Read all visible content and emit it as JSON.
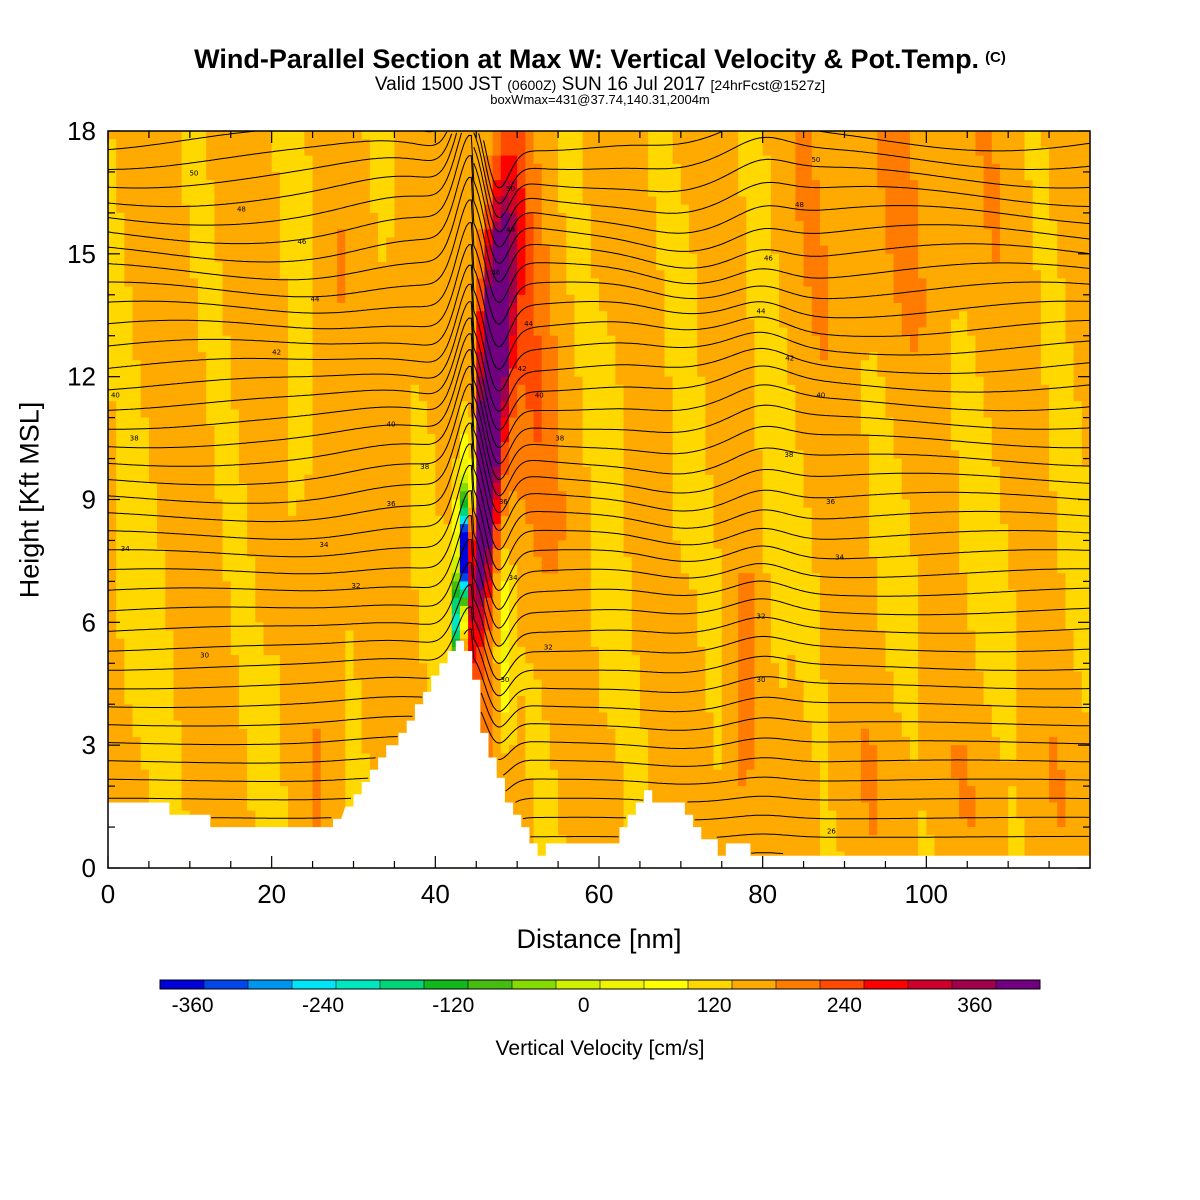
{
  "header": {
    "title": "Wind-Parallel Section at Max W: Vertical Velocity & Pot.Temp.",
    "title_unit": "(C)",
    "valid_main_a": "Valid 1500 JST",
    "valid_small_a": "(0600Z)",
    "valid_main_b": "SUN 16 Jul 2017",
    "valid_small_b": "[24hrFcst@1527z]",
    "box_line": "boxWmax=431@37.74,140.31,2004m"
  },
  "chart_data": {
    "type": "heatmap",
    "xlabel": "Distance [nm]",
    "ylabel": "Height [Kft MSL]",
    "xlim": [
      0,
      120
    ],
    "ylim": [
      0,
      18
    ],
    "x_ticks": [
      "0",
      "20",
      "40",
      "60",
      "80",
      "100"
    ],
    "x_tick_values": [
      0,
      20,
      40,
      60,
      80,
      100
    ],
    "y_ticks": [
      "0",
      "3",
      "6",
      "9",
      "12",
      "15",
      "18"
    ],
    "y_tick_values": [
      0,
      3,
      6,
      9,
      12,
      15,
      18
    ],
    "colorbar": {
      "label": "Vertical Velocity [cm/s]",
      "tick_labels": [
        "-360",
        "-240",
        "-120",
        "0",
        "120",
        "240",
        "360"
      ],
      "tick_values": [
        -360,
        -240,
        -120,
        0,
        120,
        240,
        360
      ],
      "range": [
        -390,
        420
      ],
      "interval": 30,
      "colors": [
        "#0000d8",
        "#0046e8",
        "#0096f0",
        "#00e6f8",
        "#00e8c0",
        "#00d678",
        "#12b81e",
        "#46bc10",
        "#86dc00",
        "#d0f200",
        "#f0f400",
        "#ffff00",
        "#ffd800",
        "#ffaa00",
        "#ff7c00",
        "#ff4a00",
        "#ff0000",
        "#d0002a",
        "#a0004c",
        "#700080"
      ]
    },
    "contour_label": "Potential Temperature (C), 2 C interval",
    "theta_labels": [
      {
        "text": "50",
        "x": 10.5,
        "y": 16.98
      },
      {
        "text": "48",
        "x": 16.3,
        "y": 16.1
      },
      {
        "text": "46",
        "x": 23.7,
        "y": 15.3
      },
      {
        "text": "44",
        "x": 25.3,
        "y": 13.9
      },
      {
        "text": "42",
        "x": 20.6,
        "y": 12.6
      },
      {
        "text": "40",
        "x": 0.9,
        "y": 11.55
      },
      {
        "text": "38",
        "x": 3.2,
        "y": 10.5
      },
      {
        "text": "34",
        "x": 2.1,
        "y": 7.8
      },
      {
        "text": "30",
        "x": 11.8,
        "y": 5.2
      },
      {
        "text": "40",
        "x": 34.6,
        "y": 10.85
      },
      {
        "text": "38",
        "x": 38.7,
        "y": 9.8
      },
      {
        "text": "36",
        "x": 34.6,
        "y": 8.9
      },
      {
        "text": "34",
        "x": 26.4,
        "y": 7.9
      },
      {
        "text": "32",
        "x": 30.3,
        "y": 6.9
      },
      {
        "text": "50",
        "x": 49.2,
        "y": 16.6
      },
      {
        "text": "48",
        "x": 49.2,
        "y": 15.6
      },
      {
        "text": "46",
        "x": 47.4,
        "y": 14.55
      },
      {
        "text": "44",
        "x": 51.4,
        "y": 13.3
      },
      {
        "text": "42",
        "x": 50.6,
        "y": 12.2
      },
      {
        "text": "40",
        "x": 52.7,
        "y": 11.55
      },
      {
        "text": "38",
        "x": 55.2,
        "y": 10.5
      },
      {
        "text": "36",
        "x": 48.3,
        "y": 8.95
      },
      {
        "text": "34",
        "x": 49.5,
        "y": 7.1
      },
      {
        "text": "32",
        "x": 53.8,
        "y": 5.4
      },
      {
        "text": "30",
        "x": 48.5,
        "y": 4.6
      },
      {
        "text": "50",
        "x": 86.5,
        "y": 17.3
      },
      {
        "text": "48",
        "x": 84.5,
        "y": 16.2
      },
      {
        "text": "46",
        "x": 80.7,
        "y": 14.9
      },
      {
        "text": "44",
        "x": 79.8,
        "y": 13.6
      },
      {
        "text": "42",
        "x": 83.3,
        "y": 12.45
      },
      {
        "text": "40",
        "x": 87.1,
        "y": 11.55
      },
      {
        "text": "38",
        "x": 83.2,
        "y": 10.1
      },
      {
        "text": "36",
        "x": 88.3,
        "y": 8.95
      },
      {
        "text": "34",
        "x": 89.4,
        "y": 7.6
      },
      {
        "text": "32",
        "x": 79.8,
        "y": 6.15
      },
      {
        "text": "30",
        "x": 79.8,
        "y": 4.6
      },
      {
        "text": "26",
        "x": 88.4,
        "y": 0.9
      }
    ],
    "terrain": [
      [
        0,
        1.6
      ],
      [
        7.5,
        1.6
      ],
      [
        7.5,
        1.3
      ],
      [
        12.5,
        1.3
      ],
      [
        12.5,
        1.0
      ],
      [
        23.5,
        1.0
      ],
      [
        23.5,
        1.0
      ],
      [
        27.5,
        1.0
      ],
      [
        27.5,
        1.2
      ],
      [
        28.5,
        1.2
      ],
      [
        29,
        1.5
      ],
      [
        30,
        1.5
      ],
      [
        30,
        1.8
      ],
      [
        31,
        1.8
      ],
      [
        31,
        2.1
      ],
      [
        32,
        2.1
      ],
      [
        32,
        2.4
      ],
      [
        33,
        2.4
      ],
      [
        33,
        2.7
      ],
      [
        34,
        2.7
      ],
      [
        34,
        3.0
      ],
      [
        35.5,
        3.0
      ],
      [
        35.5,
        3.3
      ],
      [
        36.5,
        3.3
      ],
      [
        36.5,
        3.6
      ],
      [
        37.5,
        3.6
      ],
      [
        37.5,
        4.0
      ],
      [
        38.5,
        4.0
      ],
      [
        38.5,
        4.3
      ],
      [
        39.5,
        4.3
      ],
      [
        39.5,
        4.7
      ],
      [
        40.5,
        4.7
      ],
      [
        40.5,
        5.0
      ],
      [
        41.5,
        5.0
      ],
      [
        41.5,
        5.3
      ],
      [
        42.5,
        5.3
      ],
      [
        42.5,
        5.55
      ],
      [
        43.5,
        5.55
      ],
      [
        43.5,
        5.3
      ],
      [
        44.5,
        5.3
      ],
      [
        44.5,
        4.6
      ],
      [
        45.5,
        4.6
      ],
      [
        45.5,
        3.3
      ],
      [
        46.5,
        3.3
      ],
      [
        46.5,
        2.7
      ],
      [
        47.5,
        2.7
      ],
      [
        47.5,
        2.2
      ],
      [
        48.5,
        2.2
      ],
      [
        48.5,
        1.6
      ],
      [
        49.5,
        1.6
      ],
      [
        49.5,
        1.3
      ],
      [
        50.5,
        1.3
      ],
      [
        50.5,
        1.0
      ],
      [
        51.5,
        1.0
      ],
      [
        51.5,
        0.6
      ],
      [
        52.5,
        0.6
      ],
      [
        52.5,
        0.3
      ],
      [
        53.5,
        0.3
      ],
      [
        53.5,
        0.6
      ],
      [
        56.5,
        0.6
      ],
      [
        56.5,
        0.6
      ],
      [
        62.5,
        0.6
      ],
      [
        62.5,
        1.0
      ],
      [
        63.5,
        1.0
      ],
      [
        63.5,
        1.3
      ],
      [
        64.5,
        1.3
      ],
      [
        64.5,
        1.6
      ],
      [
        65.5,
        1.6
      ],
      [
        65.5,
        1.9
      ],
      [
        66.5,
        1.9
      ],
      [
        66.5,
        1.6
      ],
      [
        70.5,
        1.6
      ],
      [
        70.5,
        1.3
      ],
      [
        71.5,
        1.3
      ],
      [
        71.5,
        1.0
      ],
      [
        72.5,
        1.0
      ],
      [
        72.5,
        0.7
      ],
      [
        74.5,
        0.7
      ],
      [
        74.5,
        0.3
      ],
      [
        75.5,
        0.3
      ],
      [
        75.5,
        0.6
      ],
      [
        78.5,
        0.6
      ],
      [
        78.5,
        0.3
      ],
      [
        120,
        0.3
      ]
    ]
  }
}
